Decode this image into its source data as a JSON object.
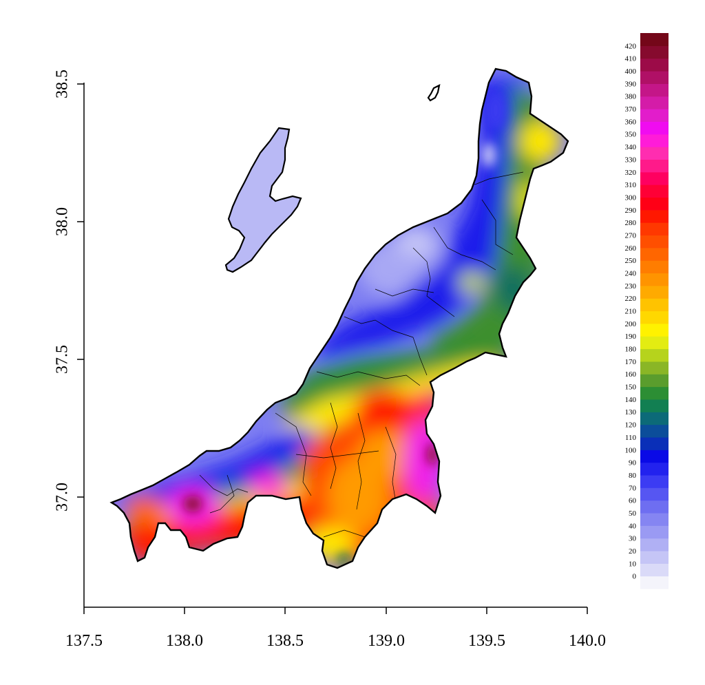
{
  "axes": {
    "x_ticks": [
      "137.5",
      "138.0",
      "138.5",
      "139.0",
      "139.5",
      "140.0"
    ],
    "y_ticks": [
      "38.5",
      "38.0",
      "37.5",
      "37.0"
    ]
  },
  "legend": {
    "levels": [
      "0",
      "10",
      "20",
      "30",
      "40",
      "50",
      "60",
      "70",
      "80",
      "90",
      "100",
      "110",
      "120",
      "130",
      "140",
      "150",
      "160",
      "170",
      "180",
      "190",
      "200",
      "210",
      "220",
      "230",
      "240",
      "250",
      "260",
      "270",
      "280",
      "290",
      "300",
      "310",
      "320",
      "330",
      "340",
      "350",
      "360",
      "370",
      "380",
      "390",
      "400",
      "410",
      "420"
    ],
    "colors": [
      "#F4F4FB",
      "#DADAF8",
      "#C5C5F6",
      "#B0B0F4",
      "#9A9AF3",
      "#8585F2",
      "#6E6EF1",
      "#5656F2",
      "#3C3CF3",
      "#2222EE",
      "#0A0AE6",
      "#0A2FB8",
      "#0B4D9A",
      "#0C6A78",
      "#127F52",
      "#2C8E34",
      "#5A9D2D",
      "#8AB626",
      "#B6D31C",
      "#E3EC12",
      "#FFF200",
      "#FFD800",
      "#FFC300",
      "#FFAA00",
      "#FF9400",
      "#FF7D00",
      "#FF6600",
      "#FF4F00",
      "#FF3800",
      "#FF1800",
      "#FF0016",
      "#FF0036",
      "#FF0060",
      "#FF1A8A",
      "#FF2DB0",
      "#FF1CD8",
      "#F00CF0",
      "#E21DCB",
      "#D41CA8",
      "#C41688",
      "#B01066",
      "#9C0B48",
      "#860A2E",
      "#740719"
    ]
  },
  "map_colors": {
    "outline": "#000000",
    "sado": "#B9B9F5",
    "north_low": "#7E7EF2",
    "north_very_low": "#C8C8F6",
    "blue": "#1A1AEB",
    "green": "#3D8F2F",
    "darkgreen": "#0F6E60",
    "yellow": "#FFE800",
    "lime": "#C8DF18",
    "orange": "#FF9A00",
    "redorange": "#FF4A00",
    "red": "#FF1A00",
    "magenta": "#F020E8",
    "maroon": "#8B0A30"
  }
}
